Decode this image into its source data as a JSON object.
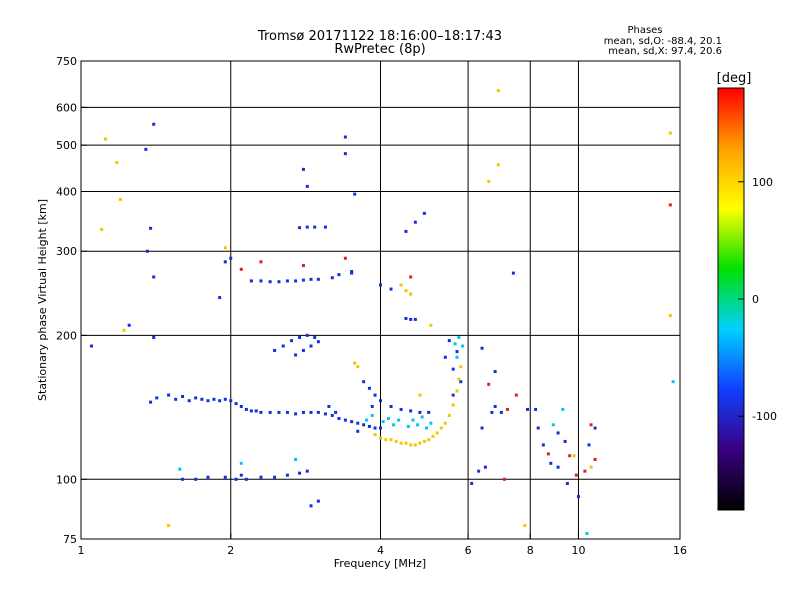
{
  "chart_data": {
    "type": "scatter",
    "title": "Tromsø 20171122 18:16:00–18:17:43",
    "subtitle": "RwPretec (8p)",
    "xlabel": "Frequency [MHz]",
    "ylabel": "Stationary phase Virtual Height [km]",
    "x_scale": "log",
    "y_scale": "log",
    "xlim": [
      1,
      16
    ],
    "ylim": [
      75,
      750
    ],
    "x_ticks": [
      1,
      2,
      4,
      6,
      8,
      10,
      16
    ],
    "y_ticks": [
      75,
      100,
      200,
      300,
      400,
      500,
      600,
      750
    ],
    "grid_x": [
      2,
      4,
      6,
      8,
      10
    ],
    "grid_y": [
      100,
      200,
      300,
      400,
      500,
      600
    ],
    "phase_stats": {
      "title": "Phases",
      "line_o": "mean, sd,O: -88.4, 20.1",
      "line_x": "mean, sd,X: 97.4, 20.6"
    },
    "colorbar": {
      "label": "[deg]",
      "ticks": [
        100,
        0,
        -100
      ],
      "range": [
        -180,
        180
      ],
      "colors": [
        "#000000",
        "#3a0080",
        "#1040ff",
        "#00d0ff",
        "#00e000",
        "#ffff00",
        "#ffa000",
        "#ff0000"
      ]
    },
    "series": [
      {
        "points": [
          [
            1.42,
            148
          ],
          [
            1.5,
            150
          ],
          [
            1.55,
            147
          ],
          [
            1.6,
            149
          ],
          [
            1.65,
            146
          ],
          [
            1.7,
            148
          ],
          [
            1.75,
            147
          ],
          [
            1.8,
            146
          ],
          [
            1.85,
            147
          ],
          [
            1.9,
            146
          ],
          [
            1.95,
            147
          ],
          [
            2.0,
            146
          ],
          [
            2.05,
            144
          ],
          [
            2.1,
            142
          ],
          [
            2.15,
            140
          ],
          [
            2.2,
            139
          ],
          [
            2.25,
            139
          ],
          [
            2.3,
            138
          ],
          [
            2.4,
            138
          ],
          [
            2.5,
            138
          ],
          [
            2.6,
            138
          ],
          [
            2.7,
            137
          ],
          [
            2.8,
            138
          ],
          [
            2.9,
            138
          ],
          [
            3.0,
            138
          ],
          [
            3.1,
            137
          ],
          [
            3.2,
            136
          ],
          [
            3.3,
            134
          ],
          [
            3.4,
            133
          ],
          [
            3.5,
            132
          ],
          [
            3.6,
            131
          ],
          [
            3.7,
            130
          ],
          [
            3.8,
            129
          ],
          [
            3.9,
            128
          ],
          [
            4.0,
            128
          ],
          [
            1.6,
            100
          ],
          [
            1.7,
            100
          ],
          [
            1.8,
            101
          ],
          [
            1.95,
            101
          ],
          [
            2.05,
            100
          ],
          [
            2.15,
            100
          ],
          [
            2.3,
            101
          ],
          [
            2.45,
            101
          ],
          [
            2.6,
            102
          ],
          [
            2.75,
            103
          ],
          [
            2.85,
            104
          ],
          [
            2.45,
            186
          ],
          [
            2.55,
            190
          ],
          [
            2.65,
            195
          ],
          [
            2.75,
            198
          ],
          [
            2.85,
            200
          ],
          [
            2.95,
            198
          ],
          [
            3.0,
            194
          ],
          [
            2.9,
            190
          ],
          [
            2.8,
            186
          ],
          [
            2.7,
            182
          ],
          [
            2.2,
            260
          ],
          [
            2.3,
            260
          ],
          [
            2.4,
            259
          ],
          [
            2.5,
            259
          ],
          [
            2.6,
            260
          ],
          [
            2.7,
            260
          ],
          [
            2.8,
            261
          ],
          [
            2.9,
            262
          ],
          [
            3.0,
            262
          ],
          [
            3.2,
            264
          ],
          [
            3.3,
            268
          ],
          [
            3.5,
            272
          ],
          [
            2.75,
            336
          ],
          [
            2.85,
            337
          ],
          [
            2.95,
            337
          ],
          [
            3.1,
            337
          ],
          [
            3.7,
            160
          ],
          [
            3.8,
            155
          ],
          [
            3.9,
            150
          ],
          [
            4.0,
            146
          ],
          [
            4.2,
            142
          ],
          [
            4.4,
            140
          ],
          [
            4.6,
            139
          ],
          [
            4.8,
            138
          ],
          [
            5.0,
            138
          ],
          [
            4.5,
            217
          ],
          [
            4.6,
            216
          ],
          [
            4.7,
            216
          ],
          [
            4.0,
            255
          ],
          [
            4.2,
            250
          ],
          [
            1.4,
            553
          ],
          [
            1.35,
            490
          ],
          [
            1.38,
            335
          ],
          [
            1.36,
            300
          ],
          [
            1.4,
            265
          ],
          [
            1.38,
            145
          ],
          [
            1.4,
            198
          ],
          [
            1.25,
            210
          ],
          [
            1.05,
            190
          ],
          [
            2.85,
            410
          ],
          [
            2.8,
            445
          ],
          [
            3.4,
            520
          ],
          [
            3.4,
            480
          ],
          [
            3.55,
            395
          ],
          [
            4.9,
            360
          ],
          [
            4.5,
            330
          ],
          [
            4.7,
            345
          ],
          [
            2.9,
            88
          ],
          [
            3.0,
            90
          ],
          [
            3.5,
            270
          ],
          [
            6.3,
            104
          ],
          [
            6.5,
            106
          ],
          [
            6.1,
            98
          ],
          [
            6.4,
            128
          ],
          [
            6.7,
            138
          ],
          [
            6.8,
            142
          ],
          [
            7.0,
            138
          ],
          [
            7.4,
            270
          ],
          [
            7.9,
            140
          ],
          [
            8.2,
            140
          ],
          [
            8.3,
            128
          ],
          [
            8.5,
            118
          ],
          [
            8.8,
            108
          ],
          [
            9.1,
            106
          ],
          [
            9.5,
            98
          ],
          [
            10.0,
            92
          ],
          [
            10.5,
            118
          ],
          [
            10.8,
            128
          ],
          [
            5.8,
            160
          ],
          [
            5.6,
            150
          ],
          [
            5.4,
            180
          ],
          [
            5.5,
            195
          ],
          [
            5.7,
            185
          ],
          [
            5.6,
            170
          ],
          [
            1.95,
            285
          ],
          [
            2.0,
            290
          ],
          [
            1.9,
            240
          ],
          [
            6.4,
            188
          ],
          [
            6.8,
            168
          ],
          [
            9.1,
            125
          ],
          [
            9.4,
            120
          ],
          [
            2.1,
            102
          ],
          [
            3.25,
            138
          ],
          [
            3.6,
            126
          ],
          [
            3.15,
            142
          ],
          [
            3.85,
            142
          ]
        ]
      },
      {
        "points": [
          [
            3.9,
            124
          ],
          [
            4.0,
            122
          ],
          [
            4.1,
            121
          ],
          [
            4.2,
            121
          ],
          [
            4.3,
            120
          ],
          [
            4.4,
            119
          ],
          [
            4.5,
            119
          ],
          [
            4.6,
            118
          ],
          [
            4.7,
            118
          ],
          [
            4.8,
            119
          ],
          [
            4.9,
            120
          ],
          [
            5.0,
            121
          ],
          [
            5.1,
            123
          ],
          [
            5.2,
            125
          ],
          [
            5.3,
            128
          ],
          [
            5.4,
            131
          ],
          [
            5.5,
            136
          ],
          [
            5.6,
            143
          ],
          [
            5.7,
            153
          ],
          [
            5.75,
            162
          ],
          [
            5.8,
            172
          ],
          [
            4.4,
            255
          ],
          [
            4.5,
            248
          ],
          [
            4.6,
            244
          ],
          [
            5.05,
            210
          ],
          [
            3.55,
            175
          ],
          [
            3.6,
            172
          ],
          [
            4.8,
            150
          ],
          [
            6.9,
            455
          ],
          [
            6.6,
            420
          ],
          [
            6.9,
            650
          ],
          [
            1.12,
            515
          ],
          [
            1.18,
            460
          ],
          [
            1.2,
            385
          ],
          [
            1.1,
            333
          ],
          [
            1.22,
            205
          ],
          [
            15.3,
            530
          ],
          [
            15.3,
            220
          ],
          [
            1.5,
            80
          ],
          [
            7.8,
            80
          ],
          [
            10.6,
            106
          ],
          [
            9.8,
            112
          ],
          [
            1.95,
            305
          ]
        ]
      },
      {
        "points": [
          [
            3.75,
            133
          ],
          [
            3.85,
            136
          ],
          [
            4.05,
            132
          ],
          [
            4.15,
            134
          ],
          [
            4.25,
            130
          ],
          [
            4.35,
            133
          ],
          [
            4.55,
            129
          ],
          [
            4.65,
            133
          ],
          [
            4.75,
            130
          ],
          [
            4.85,
            135
          ],
          [
            4.95,
            128
          ],
          [
            5.05,
            131
          ],
          [
            5.65,
            192
          ],
          [
            5.75,
            198
          ],
          [
            5.85,
            190
          ],
          [
            5.7,
            180
          ],
          [
            9.3,
            140
          ],
          [
            8.9,
            130
          ],
          [
            1.58,
            105
          ],
          [
            2.1,
            108
          ],
          [
            2.7,
            110
          ],
          [
            10.4,
            77
          ],
          [
            15.5,
            160
          ]
        ]
      },
      {
        "points": [
          [
            7.1,
            100
          ],
          [
            7.2,
            140
          ],
          [
            7.5,
            150
          ],
          [
            8.7,
            113
          ],
          [
            9.9,
            102
          ],
          [
            10.8,
            110
          ],
          [
            10.3,
            104
          ],
          [
            6.6,
            158
          ],
          [
            10.6,
            130
          ],
          [
            9.6,
            112
          ],
          [
            2.1,
            275
          ],
          [
            2.3,
            285
          ],
          [
            15.3,
            375
          ],
          [
            4.6,
            265
          ],
          [
            3.4,
            290
          ],
          [
            2.8,
            280
          ]
        ]
      }
    ]
  }
}
